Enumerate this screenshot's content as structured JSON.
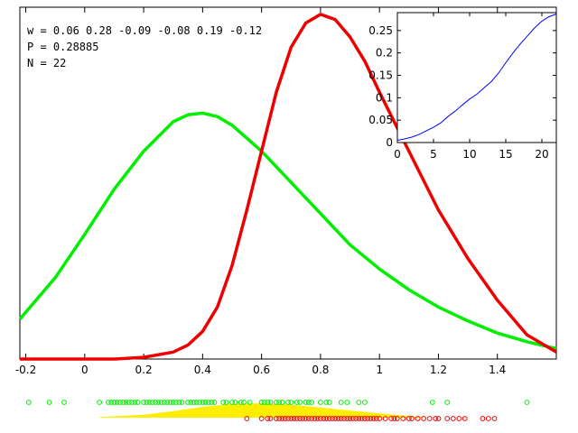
{
  "annotations": [
    "w = 0.06 0.28 -0.09 -0.08 0.19 -0.12",
    "P = 0.28885",
    "N = 22"
  ],
  "colors": {
    "green": "#00ee00",
    "red": "#ee0000",
    "yellow": "#ffee00",
    "blue": "#0000ff"
  },
  "chart_data": [
    {
      "type": "line",
      "xlim": [
        -0.22,
        1.6
      ],
      "ylim": [
        0,
        1
      ],
      "x_ticks": [
        -0.2,
        0,
        0.2,
        0.4,
        0.6,
        0.8,
        1,
        1.2,
        1.4
      ],
      "x_tick_labels": [
        "-0.2",
        "0",
        "0.2",
        "0.4",
        "0.6",
        "0.8",
        "1",
        "1.2",
        "1.4"
      ],
      "y_ticks_visible": false,
      "series": [
        {
          "color": "green",
          "x": [
            -0.22,
            -0.1,
            0.0,
            0.1,
            0.2,
            0.3,
            0.35,
            0.4,
            0.45,
            0.5,
            0.6,
            0.7,
            0.8,
            0.9,
            1.0,
            1.1,
            1.2,
            1.3,
            1.4,
            1.5,
            1.6
          ],
          "y": [
            0.115,
            0.235,
            0.36,
            0.49,
            0.6,
            0.685,
            0.705,
            0.71,
            0.7,
            0.675,
            0.6,
            0.51,
            0.42,
            0.33,
            0.26,
            0.2,
            0.15,
            0.11,
            0.075,
            0.05,
            0.03
          ]
        },
        {
          "color": "red",
          "x": [
            -0.22,
            0.0,
            0.1,
            0.2,
            0.3,
            0.35,
            0.4,
            0.45,
            0.5,
            0.55,
            0.6,
            0.65,
            0.7,
            0.75,
            0.8,
            0.85,
            0.9,
            0.95,
            1.0,
            1.1,
            1.2,
            1.3,
            1.4,
            1.5,
            1.6
          ],
          "y": [
            0.0,
            0.0,
            0.0,
            0.005,
            0.02,
            0.04,
            0.08,
            0.15,
            0.27,
            0.43,
            0.6,
            0.77,
            0.9,
            0.97,
            0.995,
            0.98,
            0.93,
            0.86,
            0.77,
            0.6,
            0.43,
            0.29,
            0.17,
            0.07,
            0.02
          ]
        }
      ],
      "rug": {
        "green_y": "row1",
        "green_points": [
          -0.19,
          -0.12,
          -0.07,
          0.05,
          0.08,
          0.09,
          0.1,
          0.11,
          0.12,
          0.13,
          0.14,
          0.15,
          0.16,
          0.17,
          0.18,
          0.2,
          0.21,
          0.22,
          0.23,
          0.24,
          0.25,
          0.26,
          0.27,
          0.28,
          0.29,
          0.3,
          0.31,
          0.32,
          0.33,
          0.35,
          0.36,
          0.37,
          0.38,
          0.39,
          0.4,
          0.41,
          0.42,
          0.43,
          0.44,
          0.47,
          0.48,
          0.5,
          0.51,
          0.53,
          0.54,
          0.56,
          0.6,
          0.61,
          0.62,
          0.63,
          0.65,
          0.66,
          0.67,
          0.69,
          0.7,
          0.72,
          0.73,
          0.75,
          0.76,
          0.77,
          0.8,
          0.82,
          0.83,
          0.87,
          0.89,
          0.93,
          0.95,
          1.18,
          1.23,
          1.5
        ],
        "red_points": [
          0.55,
          0.6,
          0.62,
          0.63,
          0.65,
          0.66,
          0.67,
          0.68,
          0.69,
          0.7,
          0.71,
          0.72,
          0.73,
          0.74,
          0.75,
          0.76,
          0.77,
          0.78,
          0.79,
          0.8,
          0.81,
          0.82,
          0.83,
          0.84,
          0.85,
          0.86,
          0.87,
          0.88,
          0.89,
          0.9,
          0.91,
          0.92,
          0.93,
          0.94,
          0.95,
          0.96,
          0.97,
          0.98,
          0.99,
          1.0,
          1.02,
          1.04,
          1.05,
          1.06,
          1.08,
          1.1,
          1.11,
          1.13,
          1.15,
          1.17,
          1.19,
          1.2,
          1.23,
          1.25,
          1.27,
          1.29,
          1.35,
          1.37,
          1.39
        ],
        "yellow_band": {
          "x": [
            0.05,
            0.2,
            0.3,
            0.4,
            0.5,
            0.6,
            0.7,
            0.8,
            0.9,
            1.0,
            1.1,
            1.15
          ],
          "h": [
            0.05,
            0.2,
            0.45,
            0.75,
            0.95,
            1.0,
            0.9,
            0.7,
            0.5,
            0.3,
            0.12,
            0.05
          ]
        }
      }
    },
    {
      "type": "line",
      "inset": true,
      "xlim": [
        0,
        22
      ],
      "ylim": [
        0,
        0.29
      ],
      "x_ticks": [
        0,
        5,
        10,
        15,
        20
      ],
      "x_tick_labels": [
        "0",
        "5",
        "10",
        "15",
        "20"
      ],
      "y_ticks": [
        0,
        0.05,
        0.1,
        0.15,
        0.2,
        0.25
      ],
      "y_tick_labels": [
        "0",
        "0.05",
        "0.1",
        "0.15",
        "0.2",
        "0.25"
      ],
      "series": [
        {
          "color": "blue",
          "x": [
            0,
            1,
            2,
            3,
            4,
            5,
            6,
            7,
            8,
            9,
            10,
            11,
            12,
            13,
            14,
            15,
            16,
            17,
            18,
            19,
            20,
            21,
            22
          ],
          "y": [
            0.005,
            0.008,
            0.012,
            0.018,
            0.026,
            0.034,
            0.044,
            0.058,
            0.07,
            0.084,
            0.097,
            0.108,
            0.122,
            0.136,
            0.155,
            0.178,
            0.2,
            0.22,
            0.238,
            0.256,
            0.271,
            0.281,
            0.287
          ]
        }
      ]
    }
  ]
}
